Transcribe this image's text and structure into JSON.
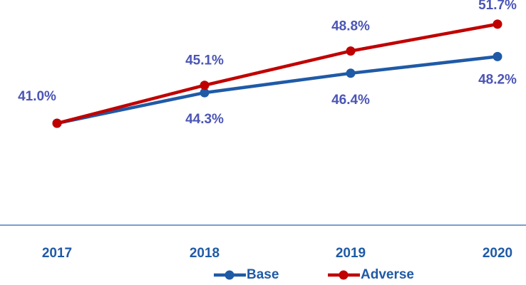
{
  "chart_data": {
    "type": "line",
    "categories": [
      "2017",
      "2018",
      "2019",
      "2020"
    ],
    "series": [
      {
        "name": "Base",
        "color": "#1f5aa6",
        "values": [
          41.0,
          44.3,
          46.4,
          48.2
        ],
        "value_labels": [
          "41.0%",
          "44.3%",
          "46.4%",
          "48.2%"
        ]
      },
      {
        "name": "Adverse",
        "color": "#c00000",
        "values": [
          41.0,
          45.1,
          48.8,
          51.7
        ],
        "value_labels": [
          null,
          "45.1%",
          "48.8%",
          "51.7%"
        ]
      }
    ],
    "ylim": [
      30,
      55
    ],
    "legend": "bottom"
  }
}
